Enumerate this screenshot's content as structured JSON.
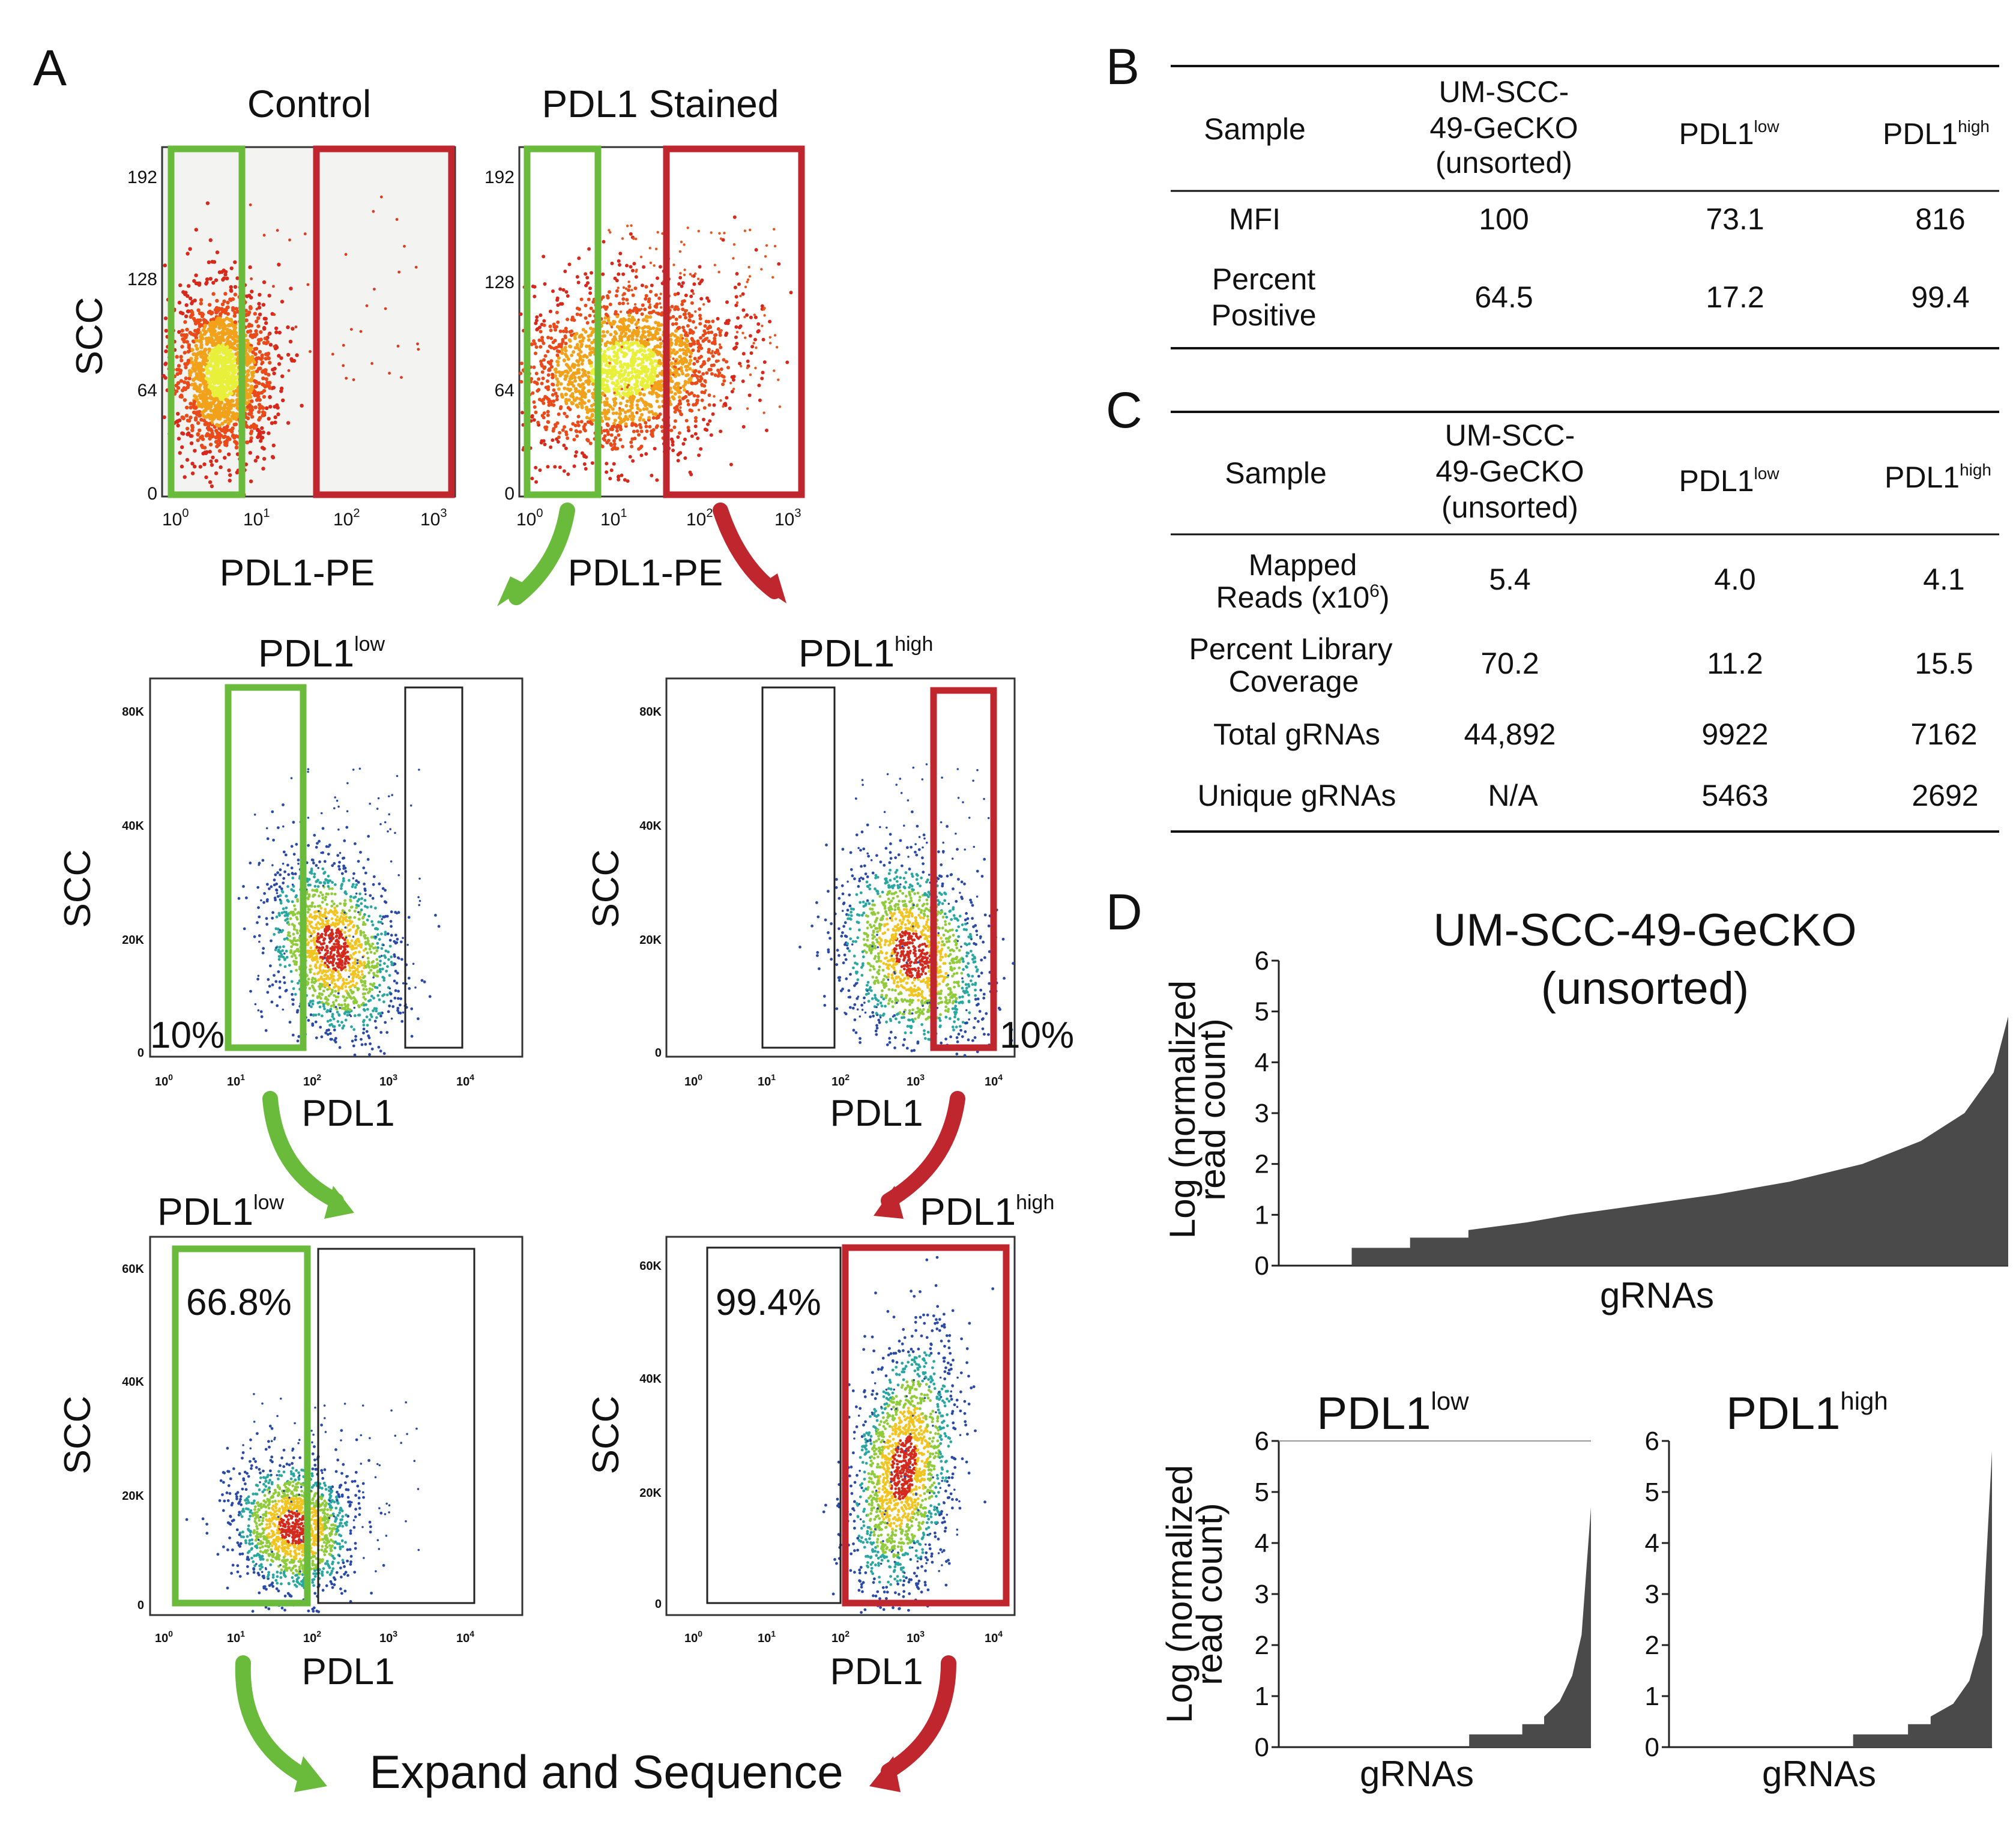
{
  "panels": {
    "A": {
      "letter": "A",
      "top": {
        "left_title": "Control",
        "right_title": "PDL1 Stained",
        "ylabel": "SCC",
        "xlabel": "PDL1-PE",
        "yticks": [
          "192",
          "128",
          "64",
          "0"
        ],
        "xticks": [
          [
            "10",
            "0"
          ],
          [
            "10",
            "1"
          ],
          [
            "10",
            "2"
          ],
          [
            "10",
            "3"
          ]
        ]
      },
      "middle": {
        "left_title_base": "PDL1",
        "left_title_sup": "low",
        "right_title_base": "PDL1",
        "right_title_sup": "high",
        "ylabel": "SCC",
        "xlabel": "PDL1",
        "yticks": [
          "80K",
          "40K",
          "20K",
          "0"
        ],
        "xticks": [
          [
            "10",
            "0"
          ],
          [
            "10",
            "1"
          ],
          [
            "10",
            "2"
          ],
          [
            "10",
            "3"
          ],
          [
            "10",
            "4"
          ]
        ],
        "left_pct": "10%",
        "right_pct": "10%"
      },
      "bottom": {
        "left_title_base": "PDL1",
        "left_title_sup": "low",
        "right_title_base": "PDL1",
        "right_title_sup": "high",
        "ylabel": "SCC",
        "xlabel": "PDL1",
        "yticks": [
          "60K",
          "40K",
          "20K",
          "0"
        ],
        "xticks": [
          [
            "10",
            "0"
          ],
          [
            "10",
            "1"
          ],
          [
            "10",
            "2"
          ],
          [
            "10",
            "3"
          ],
          [
            "10",
            "4"
          ]
        ],
        "left_pct": "66.8%",
        "right_pct": "99.4%"
      },
      "final_label": "Expand and Sequence"
    },
    "B": {
      "letter": "B",
      "headers": {
        "sample": "Sample",
        "unsorted": [
          "UM-SCC-",
          "49-GeCKO",
          "(unsorted)"
        ],
        "low_base": "PDL1",
        "low_sup": "low",
        "high_base": "PDL1",
        "high_sup": "high"
      },
      "rows": [
        {
          "label": [
            "MFI"
          ],
          "unsorted": "100",
          "low": "73.1",
          "high": "816"
        },
        {
          "label": [
            "Percent",
            "Positive"
          ],
          "unsorted": "64.5",
          "low": "17.2",
          "high": "99.4"
        }
      ]
    },
    "C": {
      "letter": "C",
      "headers": {
        "sample": "Sample",
        "unsorted": [
          "UM-SCC-",
          "49-GeCKO",
          "(unsorted)"
        ],
        "low_base": "PDL1",
        "low_sup": "low",
        "high_base": "PDL1",
        "high_sup": "high"
      },
      "rows": [
        {
          "label": [
            "Mapped",
            "Reads (x10",
            "6",
            ")"
          ],
          "unsorted": "5.4",
          "low": "4.0",
          "high": "4.1"
        },
        {
          "label": [
            "Percent Library",
            "Coverage"
          ],
          "unsorted": "70.2",
          "low": "11.2",
          "high": "15.5"
        },
        {
          "label": [
            "Total gRNAs"
          ],
          "unsorted": "44,892",
          "low": "9922",
          "high": "7162"
        },
        {
          "label": [
            "Unique gRNAs"
          ],
          "unsorted": "N/A",
          "low": "5463",
          "high": "2692"
        }
      ]
    },
    "D": {
      "letter": "D"
    }
  },
  "chart_data": [
    {
      "type": "area",
      "title": [
        "UM-SCC-49-GeCKO",
        "(unsorted)"
      ],
      "xlabel": "gRNAs",
      "ylabel": [
        "Log (normalized",
        "read count)"
      ],
      "ylim": [
        0,
        6
      ],
      "yticks": [
        0,
        1,
        2,
        3,
        4,
        5,
        6
      ],
      "series": [
        {
          "x_fraction": [
            0,
            0.1,
            0.1,
            0.18,
            0.18,
            0.26,
            0.26,
            0.34,
            0.4,
            0.5,
            0.6,
            0.7,
            0.8,
            0.88,
            0.94,
            0.98,
            1.0
          ],
          "values": [
            0,
            0,
            0.35,
            0.35,
            0.55,
            0.55,
            0.7,
            0.85,
            1.0,
            1.2,
            1.4,
            1.65,
            2.0,
            2.45,
            3.0,
            3.8,
            4.9
          ]
        }
      ]
    },
    {
      "type": "area",
      "title_base": "PDL1",
      "title_sup": "low",
      "xlabel": "gRNAs",
      "ylabel": [
        "Log (normalized",
        "read count)"
      ],
      "ylim": [
        0,
        6
      ],
      "yticks": [
        0,
        1,
        2,
        3,
        4,
        5,
        6
      ],
      "series": [
        {
          "x_fraction": [
            0,
            0.61,
            0.61,
            0.78,
            0.78,
            0.85,
            0.85,
            0.9,
            0.94,
            0.97,
            1.0
          ],
          "values": [
            0,
            0,
            0.25,
            0.25,
            0.45,
            0.45,
            0.6,
            0.9,
            1.4,
            2.2,
            4.7
          ]
        }
      ]
    },
    {
      "type": "area",
      "title_base": "PDL1",
      "title_sup": "high",
      "xlabel": "gRNAs",
      "ylabel": [],
      "ylim": [
        0,
        6
      ],
      "yticks": [
        0,
        1,
        2,
        3,
        4,
        5,
        6
      ],
      "series": [
        {
          "x_fraction": [
            0,
            0.57,
            0.57,
            0.74,
            0.74,
            0.81,
            0.81,
            0.88,
            0.93,
            0.97,
            1.0
          ],
          "values": [
            0,
            0,
            0.25,
            0.25,
            0.45,
            0.45,
            0.6,
            0.85,
            1.3,
            2.2,
            5.8
          ]
        }
      ]
    }
  ],
  "colors": {
    "green_gate": "#6aba3c",
    "red_gate": "#c0262d",
    "area_fill": "#4a4a4a"
  }
}
